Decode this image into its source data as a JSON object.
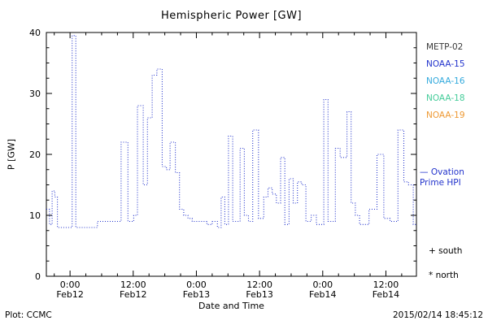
{
  "title": "Hemispheric Power [GW]",
  "axes": {
    "ylabel": "P [GW]",
    "xlabel": "Date and Time",
    "ylim": [
      0,
      40
    ],
    "yticks": [
      0,
      10,
      20,
      30,
      40
    ],
    "y_minor_step": 2.5,
    "xlim": [
      -4.5,
      65.8
    ],
    "x_minor_step": 3,
    "xticks": [
      {
        "t": 0,
        "top": "0:00",
        "bottom": "Feb12"
      },
      {
        "t": 12,
        "top": "12:00",
        "bottom": "Feb12"
      },
      {
        "t": 24,
        "top": "0:00",
        "bottom": "Feb13"
      },
      {
        "t": 36,
        "top": "12:00",
        "bottom": "Feb13"
      },
      {
        "t": 48,
        "top": "0:00",
        "bottom": "Feb14"
      },
      {
        "t": 60,
        "top": "12:00",
        "bottom": "Feb14"
      }
    ]
  },
  "legend": {
    "satellites": [
      {
        "label": "METP-02",
        "color": "#3a3a3a"
      },
      {
        "label": "NOAA-15",
        "color": "#2233cc"
      },
      {
        "label": "NOAA-16",
        "color": "#33aadd"
      },
      {
        "label": "NOAA-18",
        "color": "#44cc99"
      },
      {
        "label": "NOAA-19",
        "color": "#ee9933"
      }
    ],
    "series_label_line1": "— Ovation",
    "series_label_line2": "Prime HPI",
    "series_label_color": "#2233cc",
    "south_label": "+ south",
    "north_label": "* north"
  },
  "footer": {
    "left": "Plot: CCMC",
    "right": "2015/02/14 18:45:12"
  },
  "chart_data": {
    "type": "line",
    "style": "step-dotted",
    "title": "Hemispheric Power [GW]",
    "xlabel": "Date and Time",
    "ylabel": "P [GW]",
    "ylim": [
      0,
      40
    ],
    "x_unit": "hours since 2015-02-12 00:00",
    "line_color": "#2233cc",
    "legend_position": "right",
    "grid": false,
    "steps": [
      [
        -4.5,
        11
      ],
      [
        -3.9,
        8.5
      ],
      [
        -3.4,
        14
      ],
      [
        -2.9,
        13
      ],
      [
        -2.4,
        8
      ],
      [
        0.4,
        39.5
      ],
      [
        1.1,
        8
      ],
      [
        5.2,
        9
      ],
      [
        9.7,
        22
      ],
      [
        11.0,
        9
      ],
      [
        12.1,
        10
      ],
      [
        12.8,
        28
      ],
      [
        13.9,
        15
      ],
      [
        14.7,
        26
      ],
      [
        15.6,
        33
      ],
      [
        16.5,
        34
      ],
      [
        17.5,
        18
      ],
      [
        18.3,
        17.5
      ],
      [
        19.0,
        22
      ],
      [
        20.0,
        17
      ],
      [
        20.8,
        11
      ],
      [
        21.6,
        10
      ],
      [
        22.4,
        9.5
      ],
      [
        23.2,
        9
      ],
      [
        26.0,
        8.5
      ],
      [
        27.0,
        9
      ],
      [
        28.0,
        8
      ],
      [
        28.7,
        13
      ],
      [
        29.4,
        8.5
      ],
      [
        30.1,
        23
      ],
      [
        30.9,
        9
      ],
      [
        32.3,
        21
      ],
      [
        33.1,
        10
      ],
      [
        33.9,
        9
      ],
      [
        34.7,
        24
      ],
      [
        35.8,
        9.5
      ],
      [
        36.8,
        13
      ],
      [
        37.6,
        14.5
      ],
      [
        38.4,
        13.5
      ],
      [
        39.2,
        12
      ],
      [
        40.0,
        19.5
      ],
      [
        40.8,
        8.5
      ],
      [
        41.6,
        16
      ],
      [
        42.4,
        12
      ],
      [
        43.2,
        15.5
      ],
      [
        44.0,
        15
      ],
      [
        44.8,
        9
      ],
      [
        45.8,
        10
      ],
      [
        46.8,
        8.5
      ],
      [
        48.2,
        29
      ],
      [
        49.0,
        9
      ],
      [
        50.4,
        21
      ],
      [
        51.3,
        19.5
      ],
      [
        52.6,
        27
      ],
      [
        53.4,
        12
      ],
      [
        54.2,
        10
      ],
      [
        55.0,
        8.5
      ],
      [
        56.8,
        11
      ],
      [
        58.3,
        20
      ],
      [
        59.6,
        9.5
      ],
      [
        60.8,
        9
      ],
      [
        62.3,
        24
      ],
      [
        63.4,
        15.5
      ],
      [
        64.3,
        15
      ],
      [
        65.2,
        8.5
      ]
    ]
  }
}
